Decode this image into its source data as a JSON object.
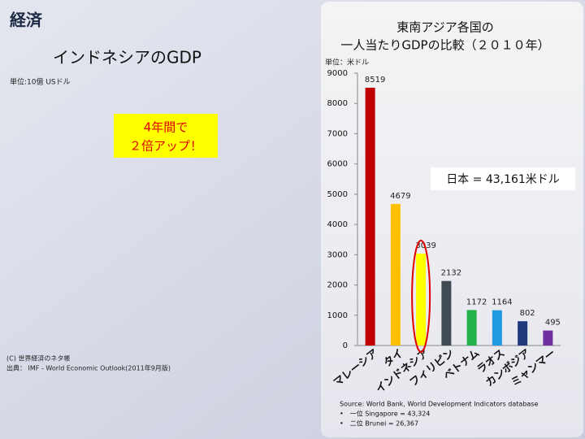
{
  "slide": {
    "heading": "経済",
    "title": "インドネシアのGDP",
    "unit": "単位:10億 USドル",
    "callout": [
      "4年間で",
      "２倍アップ！"
    ],
    "credits": [
      "(C) 世界経済のネタ帳",
      "出典： IMF - World Economic Outlook(2011年9月版)"
    ]
  },
  "chart_data": {
    "type": "bar",
    "title": [
      "東南アジア各国の",
      "一人当たりGDPの比較（２０１０年）"
    ],
    "y_label": "単位：米ドル",
    "categories": [
      "マレーシア",
      "タイ",
      "インドネシア",
      "フィリピン",
      "ベトナム",
      "ラオス",
      "カンボジア",
      "ミャンマー"
    ],
    "values": [
      8519,
      4679,
      3039,
      2132,
      1172,
      1164,
      802,
      495
    ],
    "colors": [
      "#c00000",
      "#ffc000",
      "#ffff00",
      "#3f4a52",
      "#22b14c",
      "#1f9ae0",
      "#1f3a7a",
      "#7030a0"
    ],
    "ylim": [
      0,
      9000
    ],
    "yticks": [
      0,
      1000,
      2000,
      3000,
      4000,
      5000,
      6000,
      7000,
      8000,
      9000
    ],
    "annotation": "日本 = 43,161米ドル",
    "source": [
      "Source: World Bank, World Development Indicators database",
      "•　一位 Singapore = 43,324",
      "•　二位 Brunei = 26,367"
    ]
  }
}
